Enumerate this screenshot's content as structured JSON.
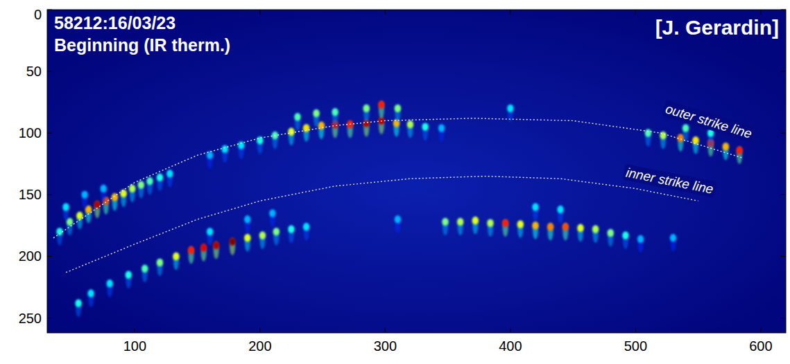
{
  "chart_data": {
    "type": "image",
    "title": "58212:16/03/23",
    "subtitle": "Beginning (IR therm.)",
    "annotations": [
      "[J. Gerardin]"
    ],
    "xlim": [
      30,
      620
    ],
    "ylim": [
      262,
      0
    ],
    "xticks": [
      100,
      200,
      300,
      400,
      500,
      600
    ],
    "yticks": [
      0,
      50,
      100,
      150,
      200,
      250
    ],
    "clim": [
      0,
      1
    ],
    "lines": [
      {
        "name": "outer strike line",
        "color": "#ffffff",
        "line_style": "dotted",
        "x": [
          35,
          100,
          150,
          200,
          260,
          300,
          370,
          450,
          520,
          585
        ],
        "y": [
          185,
          140,
          118,
          104,
          94,
          90,
          88,
          90,
          100,
          120
        ]
      },
      {
        "name": "inner strike line",
        "color": "#ffffff",
        "line_style": "dotted",
        "x": [
          45,
          100,
          150,
          200,
          260,
          320,
          380,
          440,
          500,
          550
        ],
        "y": [
          213,
          190,
          170,
          155,
          143,
          137,
          135,
          137,
          145,
          155
        ]
      }
    ],
    "spots": {
      "x": [
        40,
        48,
        56,
        63,
        70,
        77,
        84,
        91,
        98,
        105,
        112,
        120,
        128,
        45,
        60,
        75,
        160,
        172,
        185,
        200,
        212,
        225,
        237,
        249,
        260,
        272,
        285,
        297,
        309,
        320,
        332,
        345,
        230,
        245,
        260,
        285,
        297,
        310,
        400,
        510,
        522,
        536,
        548,
        560,
        572,
        583,
        540,
        560,
        55,
        65,
        80,
        95,
        108,
        120,
        133,
        145,
        155,
        165,
        178,
        190,
        202,
        213,
        225,
        237,
        160,
        190,
        210,
        310,
        348,
        360,
        372,
        384,
        396,
        408,
        420,
        432,
        444,
        456,
        468,
        480,
        492,
        504,
        530,
        420,
        440
      ],
      "y": [
        180,
        172,
        167,
        162,
        158,
        155,
        152,
        149,
        145,
        142,
        139,
        136,
        133,
        160,
        150,
        145,
        118,
        113,
        110,
        106,
        102,
        99,
        96,
        94,
        93,
        93,
        92,
        90,
        92,
        93,
        95,
        96,
        87,
        84,
        83,
        80,
        77,
        80,
        80,
        100,
        102,
        104,
        106,
        108,
        111,
        114,
        96,
        100,
        238,
        230,
        222,
        215,
        210,
        205,
        200,
        195,
        193,
        191,
        188,
        185,
        183,
        180,
        178,
        176,
        180,
        170,
        165,
        170,
        172,
        172,
        171,
        173,
        173,
        174,
        175,
        176,
        176,
        177,
        178,
        181,
        183,
        186,
        185,
        160,
        162
      ],
      "intensity": [
        0.4,
        0.5,
        0.6,
        0.7,
        0.95,
        0.8,
        0.7,
        0.6,
        0.55,
        0.5,
        0.45,
        0.4,
        0.35,
        0.35,
        0.3,
        0.3,
        0.3,
        0.35,
        0.35,
        0.4,
        0.45,
        0.6,
        0.65,
        0.7,
        0.9,
        0.85,
        0.95,
        0.95,
        0.7,
        0.55,
        0.4,
        0.3,
        0.45,
        0.5,
        0.45,
        0.5,
        0.85,
        0.5,
        0.35,
        0.45,
        0.55,
        0.75,
        0.65,
        0.85,
        0.7,
        0.85,
        0.45,
        0.4,
        0.4,
        0.35,
        0.35,
        0.4,
        0.45,
        0.5,
        0.6,
        0.85,
        0.9,
        0.95,
        1.0,
        0.6,
        0.55,
        0.5,
        0.4,
        0.35,
        0.35,
        0.3,
        0.3,
        0.3,
        0.5,
        0.55,
        0.6,
        0.55,
        0.85,
        0.6,
        0.7,
        0.75,
        0.8,
        0.6,
        0.55,
        0.5,
        0.4,
        0.3,
        0.3,
        0.35,
        0.35
      ]
    }
  }
}
